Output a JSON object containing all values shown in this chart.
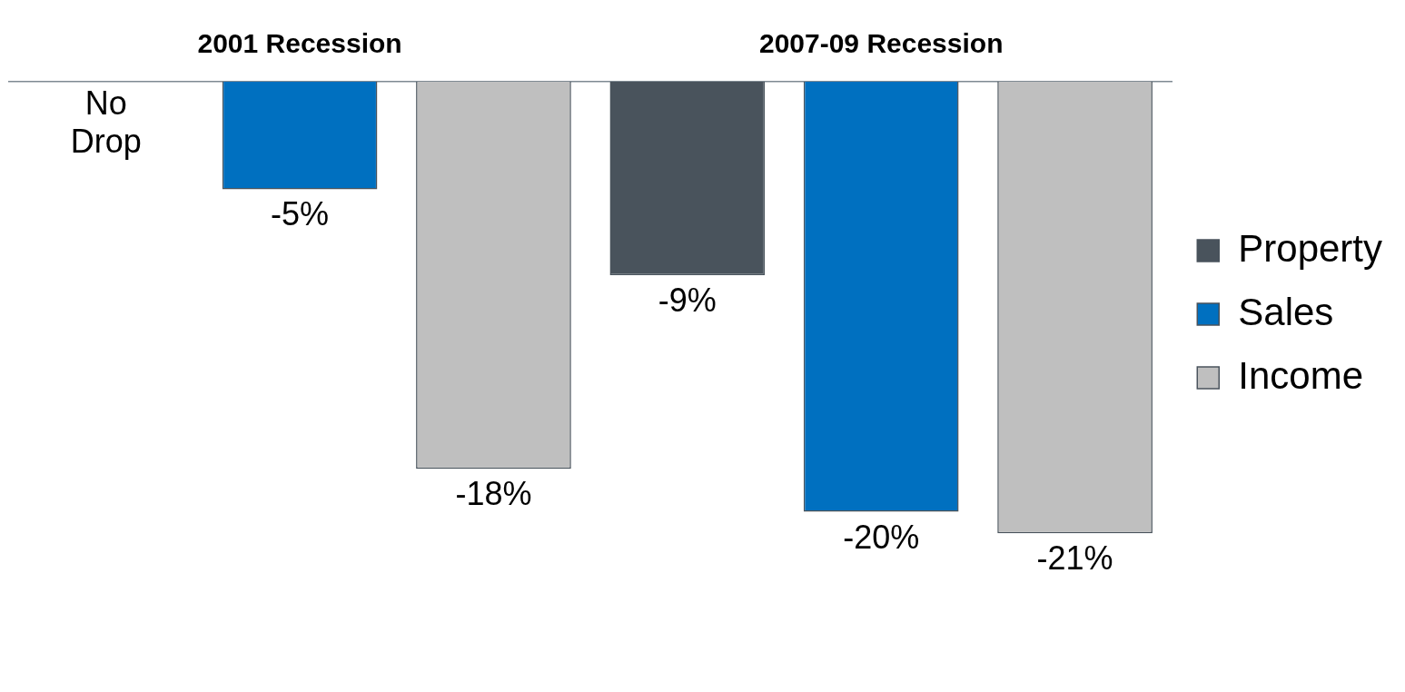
{
  "chart_data": {
    "type": "bar",
    "categories": [
      "2001 Recession",
      "2007-09 Recession"
    ],
    "series": [
      {
        "name": "Property",
        "color": "#49535c",
        "values": [
          null,
          -9
        ],
        "value_labels": [
          null,
          "-9%"
        ]
      },
      {
        "name": "Sales",
        "color": "#0070c0",
        "values": [
          -5,
          -20
        ],
        "value_labels": [
          "-5%",
          "-20%"
        ]
      },
      {
        "name": "Income",
        "color": "#bfbfbf",
        "values": [
          -18,
          -21
        ],
        "value_labels": [
          "-18%",
          "-21%"
        ]
      }
    ],
    "annotations": [
      "No Drop"
    ],
    "legend": "right",
    "grid": false,
    "tick_labels": "x"
  }
}
